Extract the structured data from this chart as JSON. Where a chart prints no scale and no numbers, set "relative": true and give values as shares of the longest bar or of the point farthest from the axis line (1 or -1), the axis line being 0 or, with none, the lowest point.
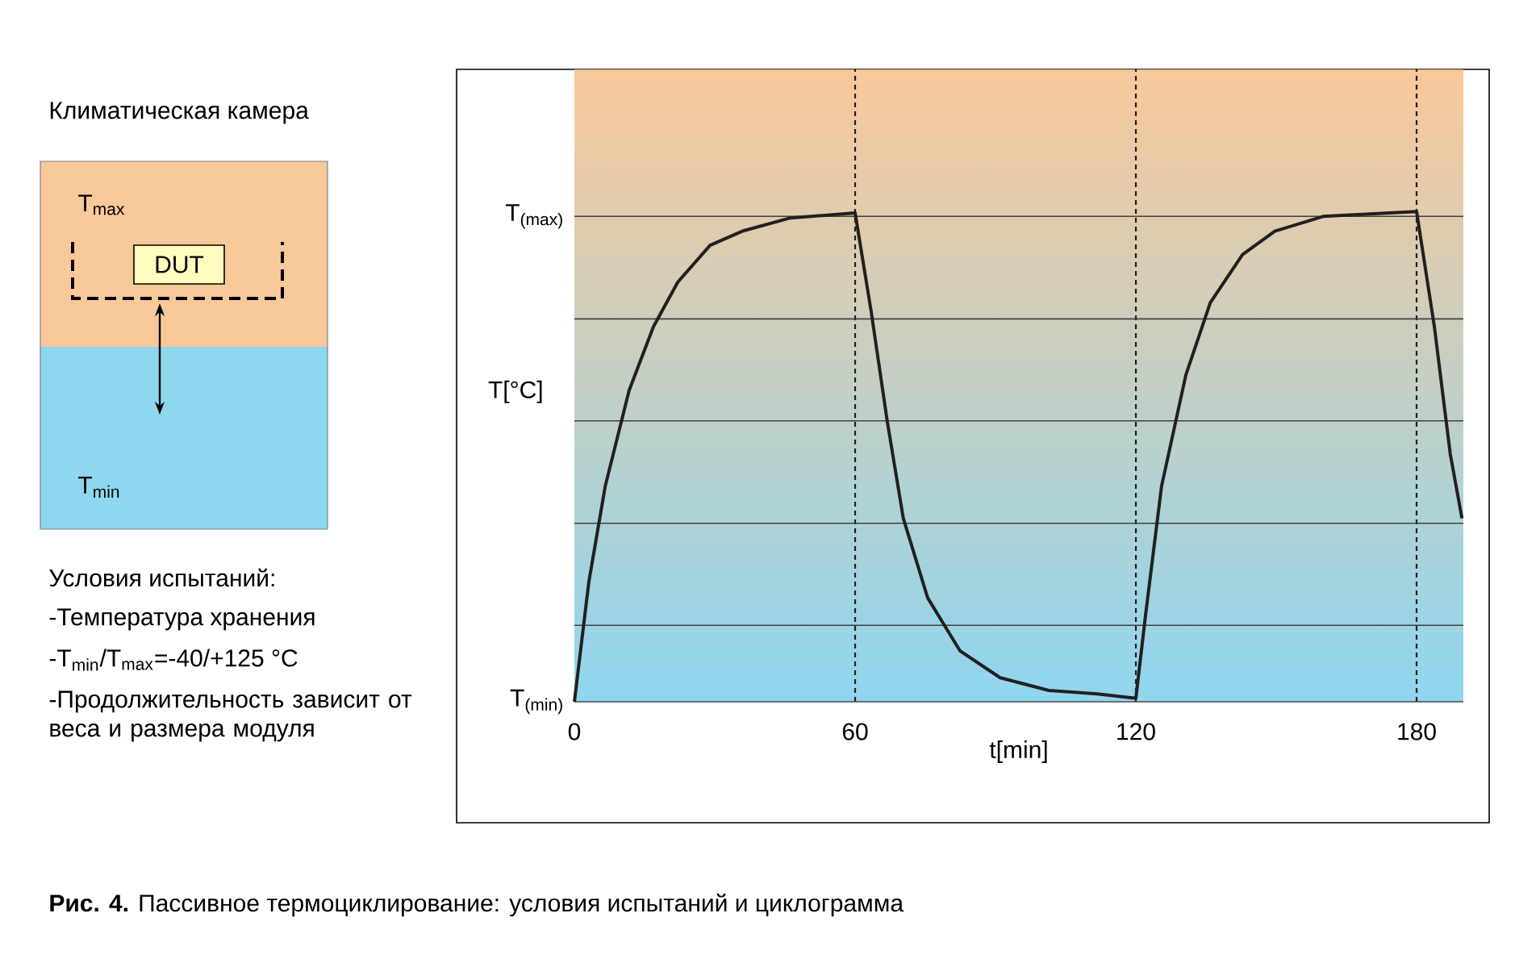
{
  "chart_data": {
    "type": "line",
    "relative": true,
    "xlabel": "t[min]",
    "ylabel": "T[°C]",
    "x": [
      0,
      3.1,
      6.6,
      11.7,
      16.9,
      22.1,
      29,
      35.9,
      46.2,
      60,
      63.4,
      66.9,
      70.3,
      75.5,
      82.4,
      91,
      101.4,
      111.7,
      120,
      122.1,
      125.5,
      130.7,
      135.9,
      142.8,
      149.7,
      160,
      180,
      183.8,
      187.2,
      189.7
    ],
    "series": [
      {
        "color": "#231f20",
        "values": [
          0,
          0.245,
          0.44,
          0.635,
          0.765,
          0.856,
          0.931,
          0.96,
          0.987,
          0.997,
          0.798,
          0.57,
          0.374,
          0.212,
          0.104,
          0.049,
          0.023,
          0.016,
          0.007,
          0.179,
          0.44,
          0.667,
          0.814,
          0.912,
          0.96,
          0.99,
          1,
          0.765,
          0.505,
          0.374
        ]
      }
    ],
    "xlim": [
      0,
      190
    ],
    "xticks": [
      0,
      60,
      120,
      180
    ],
    "marker": "none",
    "line_style": "solid",
    "ref_lines": [
      {
        "axis": "x",
        "value": 60,
        "line_style": "dashed",
        "color": "#231f20"
      },
      {
        "axis": "x",
        "value": 120,
        "line_style": "dashed",
        "color": "#231f20"
      },
      {
        "axis": "x",
        "value": 180,
        "line_style": "dashed",
        "color": "#231f20"
      },
      {
        "axis": "y",
        "value": 0,
        "label": "T$_{(min)}$",
        "color": "#404040"
      },
      {
        "axis": "y",
        "value": 0.156,
        "color": "#404040"
      },
      {
        "axis": "y",
        "value": 0.364,
        "color": "#404040"
      },
      {
        "axis": "y",
        "value": 0.573,
        "color": "#404040"
      },
      {
        "axis": "y",
        "value": 0.781,
        "color": "#404040"
      },
      {
        "axis": "y",
        "value": 0.99,
        "label": "T$_{(max)}$",
        "color": "#404040"
      }
    ],
    "annotations": [
      "Климатическая камера",
      "T$_{max}$",
      "DUT",
      "T$_{min}$",
      "Условия испытаний:",
      "-Температура хранения",
      "-T$_{min}$/T$_{max}$=-40/+125 °C",
      "-Продолжительность зависит от веса и размера модуля",
      "**Рис. 4.** Пассивное термоциклирование: условия испытаний и циклограмма"
    ]
  }
}
